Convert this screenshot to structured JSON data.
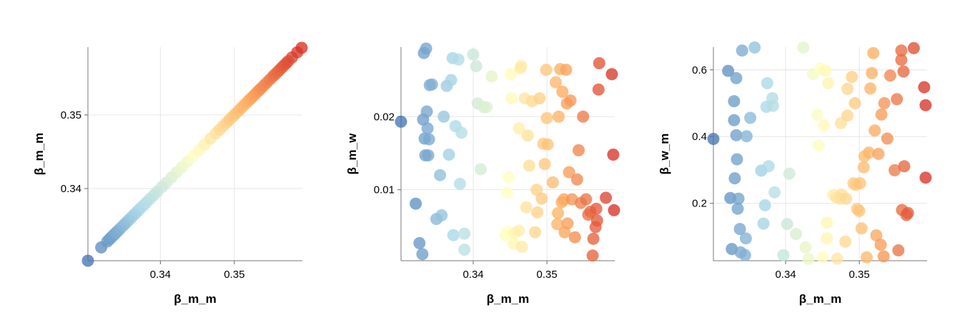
{
  "chart_data": [
    {
      "type": "scatter",
      "title": "",
      "xlabel": "β_m_m",
      "ylabel": "β_m_m",
      "xlim": [
        0.3302,
        0.3592
      ],
      "ylim": [
        0.3302,
        0.3592
      ],
      "xticks": [
        "0.34",
        "0.35"
      ],
      "yticks": [
        "0.34",
        "0.35"
      ],
      "grid": true,
      "color_by": "x",
      "colormap": "RdYlBu_r",
      "points": [
        [
          0.3302,
          0.3302
        ],
        [
          0.332,
          0.332
        ],
        [
          0.3328,
          0.3328
        ],
        [
          0.3331,
          0.3331
        ],
        [
          0.3333,
          0.3333
        ],
        [
          0.3335,
          0.3335
        ],
        [
          0.3337,
          0.3337
        ],
        [
          0.3339,
          0.3339
        ],
        [
          0.3341,
          0.3341
        ],
        [
          0.3343,
          0.3343
        ],
        [
          0.3346,
          0.3346
        ],
        [
          0.335,
          0.335
        ],
        [
          0.3353,
          0.3353
        ],
        [
          0.3357,
          0.3357
        ],
        [
          0.3361,
          0.3361
        ],
        [
          0.3365,
          0.3365
        ],
        [
          0.3369,
          0.3369
        ],
        [
          0.3373,
          0.3373
        ],
        [
          0.3377,
          0.3377
        ],
        [
          0.3381,
          0.3381
        ],
        [
          0.3386,
          0.3386
        ],
        [
          0.3391,
          0.3391
        ],
        [
          0.3396,
          0.3396
        ],
        [
          0.3402,
          0.3402
        ],
        [
          0.3408,
          0.3408
        ],
        [
          0.3415,
          0.3415
        ],
        [
          0.3422,
          0.3422
        ],
        [
          0.3429,
          0.3429
        ],
        [
          0.3436,
          0.3436
        ],
        [
          0.3444,
          0.3444
        ],
        [
          0.3452,
          0.3452
        ],
        [
          0.346,
          0.346
        ],
        [
          0.3468,
          0.3468
        ],
        [
          0.3475,
          0.3475
        ],
        [
          0.348,
          0.348
        ],
        [
          0.3485,
          0.3485
        ],
        [
          0.349,
          0.349
        ],
        [
          0.3494,
          0.3494
        ],
        [
          0.3498,
          0.3498
        ],
        [
          0.3502,
          0.3502
        ],
        [
          0.3506,
          0.3506
        ],
        [
          0.351,
          0.351
        ],
        [
          0.3514,
          0.3514
        ],
        [
          0.3518,
          0.3518
        ],
        [
          0.3521,
          0.3521
        ],
        [
          0.3524,
          0.3524
        ],
        [
          0.3527,
          0.3527
        ],
        [
          0.353,
          0.353
        ],
        [
          0.3533,
          0.3533
        ],
        [
          0.3536,
          0.3536
        ],
        [
          0.354,
          0.354
        ],
        [
          0.3544,
          0.3544
        ],
        [
          0.3548,
          0.3548
        ],
        [
          0.3552,
          0.3552
        ],
        [
          0.3555,
          0.3555
        ],
        [
          0.3558,
          0.3558
        ],
        [
          0.3561,
          0.3561
        ],
        [
          0.3564,
          0.3564
        ],
        [
          0.3567,
          0.3567
        ],
        [
          0.357,
          0.357
        ],
        [
          0.3573,
          0.3573
        ],
        [
          0.3578,
          0.3578
        ],
        [
          0.3585,
          0.3585
        ],
        [
          0.3591,
          0.3591
        ]
      ]
    },
    {
      "type": "scatter",
      "title": "",
      "xlabel": "β_m_m",
      "ylabel": "β_m_w",
      "xlim": [
        0.3302,
        0.3592
      ],
      "ylim": [
        0.0003,
        0.0295
      ],
      "xticks": [
        "0.34",
        "0.35"
      ],
      "yticks": [
        "0.01",
        "0.02"
      ],
      "grid": true,
      "color_by": "x",
      "colormap": "RdYlBu_r",
      "points": [
        [
          0.3302,
          0.0193
        ],
        [
          0.3322,
          0.0081
        ],
        [
          0.3327,
          0.0027
        ],
        [
          0.3331,
          0.0012
        ],
        [
          0.3332,
          0.0196
        ],
        [
          0.3333,
          0.0287
        ],
        [
          0.3334,
          0.017
        ],
        [
          0.3335,
          0.0147
        ],
        [
          0.3336,
          0.0293
        ],
        [
          0.3337,
          0.0207
        ],
        [
          0.3338,
          0.0184
        ],
        [
          0.3339,
          0.0147
        ],
        [
          0.334,
          0.0169
        ],
        [
          0.3341,
          0.0243
        ],
        [
          0.3344,
          0.0244
        ],
        [
          0.335,
          0.006
        ],
        [
          0.3355,
          0.012
        ],
        [
          0.3357,
          0.0065
        ],
        [
          0.336,
          0.02
        ],
        [
          0.3364,
          0.0242
        ],
        [
          0.3367,
          0.0148
        ],
        [
          0.337,
          0.025
        ],
        [
          0.3372,
          0.028
        ],
        [
          0.3373,
          0.0038
        ],
        [
          0.3376,
          0.0187
        ],
        [
          0.338,
          0.0278
        ],
        [
          0.3382,
          0.0108
        ],
        [
          0.3384,
          0.0178
        ],
        [
          0.3388,
          0.004
        ],
        [
          0.3388,
          0.0018
        ],
        [
          0.34,
          0.0285
        ],
        [
          0.3404,
          0.0269
        ],
        [
          0.3406,
          0.0218
        ],
        [
          0.341,
          0.0128
        ],
        [
          0.3414,
          0.0213
        ],
        [
          0.3418,
          0.0213
        ],
        [
          0.3425,
          0.0255
        ],
        [
          0.3444,
          0.0038
        ],
        [
          0.3446,
          0.0096
        ],
        [
          0.3447,
          0.0043
        ],
        [
          0.3448,
          0.0117
        ],
        [
          0.3451,
          0.0258
        ],
        [
          0.3452,
          0.0225
        ],
        [
          0.3455,
          0.0026
        ],
        [
          0.3456,
          0.0041
        ],
        [
          0.3462,
          0.0184
        ],
        [
          0.3462,
          0.0044
        ],
        [
          0.3464,
          0.0266
        ],
        [
          0.3465,
          0.0269
        ],
        [
          0.3466,
          0.0022
        ],
        [
          0.347,
          0.0225
        ],
        [
          0.3472,
          0.0076
        ],
        [
          0.3474,
          0.0174
        ],
        [
          0.3476,
          0.0133
        ],
        [
          0.348,
          0.0221
        ],
        [
          0.3484,
          0.0042
        ],
        [
          0.3486,
          0.01
        ],
        [
          0.3487,
          0.0069
        ],
        [
          0.349,
          0.0225
        ],
        [
          0.3493,
          0.0088
        ],
        [
          0.3495,
          0.0163
        ],
        [
          0.3497,
          0.0135
        ],
        [
          0.3499,
          0.0264
        ],
        [
          0.35,
          0.0198
        ],
        [
          0.3501,
          0.0162
        ],
        [
          0.3508,
          0.011
        ],
        [
          0.3512,
          0.0247
        ],
        [
          0.3514,
          0.0053
        ],
        [
          0.3515,
          0.0068
        ],
        [
          0.3516,
          0.02
        ],
        [
          0.3518,
          0.0265
        ],
        [
          0.352,
          0.0083
        ],
        [
          0.3521,
          0.0234
        ],
        [
          0.3523,
          0.0087
        ],
        [
          0.3524,
          0.0042
        ],
        [
          0.3526,
          0.0264
        ],
        [
          0.3527,
          0.0218
        ],
        [
          0.3528,
          0.0054
        ],
        [
          0.353,
          0.0124
        ],
        [
          0.3532,
          0.0222
        ],
        [
          0.3534,
          0.0087
        ],
        [
          0.3538,
          0.0035
        ],
        [
          0.3541,
          0.0114
        ],
        [
          0.3543,
          0.0154
        ],
        [
          0.3546,
          0.0082
        ],
        [
          0.3549,
          0.02
        ],
        [
          0.3553,
          0.0087
        ],
        [
          0.3556,
          0.0066
        ],
        [
          0.3559,
          0.007
        ],
        [
          0.3562,
          0.001
        ],
        [
          0.3563,
          0.0033
        ],
        [
          0.3566,
          0.0049
        ],
        [
          0.3567,
          0.0074
        ],
        [
          0.3568,
          0.0058
        ],
        [
          0.357,
          0.0237
        ],
        [
          0.3571,
          0.0273
        ],
        [
          0.358,
          0.0089
        ],
        [
          0.3588,
          0.0258
        ],
        [
          0.359,
          0.0148
        ],
        [
          0.3591,
          0.0072
        ]
      ]
    },
    {
      "type": "scatter",
      "title": "",
      "xlabel": "β_m_m",
      "ylabel": "β_w_m",
      "xlim": [
        0.3302,
        0.3592
      ],
      "ylim": [
        0.028,
        0.668
      ],
      "xticks": [
        "0.34",
        "0.35"
      ],
      "yticks": [
        "0.2",
        "0.4",
        "0.6"
      ],
      "grid": true,
      "color_by": "x",
      "colormap": "RdYlBu_r",
      "points": [
        [
          0.3302,
          0.393
        ],
        [
          0.3322,
          0.597
        ],
        [
          0.3325,
          0.216
        ],
        [
          0.3327,
          0.063
        ],
        [
          0.333,
          0.449
        ],
        [
          0.333,
          0.506
        ],
        [
          0.3331,
          0.275
        ],
        [
          0.3333,
          0.575
        ],
        [
          0.3333,
          0.404
        ],
        [
          0.3334,
          0.332
        ],
        [
          0.3335,
          0.184
        ],
        [
          0.3336,
          0.214
        ],
        [
          0.3338,
          0.123
        ],
        [
          0.3339,
          0.053
        ],
        [
          0.3341,
          0.658
        ],
        [
          0.3345,
          0.045
        ],
        [
          0.3346,
          0.095
        ],
        [
          0.3347,
          0.401
        ],
        [
          0.3352,
          0.456
        ],
        [
          0.3358,
          0.667
        ],
        [
          0.3367,
          0.298
        ],
        [
          0.337,
          0.139
        ],
        [
          0.3372,
          0.194
        ],
        [
          0.3374,
          0.489
        ],
        [
          0.3375,
          0.56
        ],
        [
          0.3377,
          0.311
        ],
        [
          0.3382,
          0.515
        ],
        [
          0.3383,
          0.492
        ],
        [
          0.3385,
          0.233
        ],
        [
          0.3397,
          0.045
        ],
        [
          0.3402,
          0.138
        ],
        [
          0.3405,
          0.289
        ],
        [
          0.3414,
          0.108
        ],
        [
          0.3424,
          0.667
        ],
        [
          0.3427,
          0.068
        ],
        [
          0.3431,
          0.033
        ],
        [
          0.3437,
          0.587
        ],
        [
          0.3443,
          0.465
        ],
        [
          0.3445,
          0.373
        ],
        [
          0.3447,
          0.604
        ],
        [
          0.345,
          0.039
        ],
        [
          0.3452,
          0.434
        ],
        [
          0.3454,
          0.597
        ],
        [
          0.3456,
          0.095
        ],
        [
          0.3456,
          0.142
        ],
        [
          0.3458,
          0.56
        ],
        [
          0.3465,
          0.225
        ],
        [
          0.3469,
          0.217
        ],
        [
          0.347,
          0.034
        ],
        [
          0.3474,
          0.214
        ],
        [
          0.3475,
          0.44
        ],
        [
          0.3476,
          0.226
        ],
        [
          0.3481,
          0.085
        ],
        [
          0.3482,
          0.214
        ],
        [
          0.3484,
          0.463
        ],
        [
          0.3484,
          0.543
        ],
        [
          0.349,
          0.579
        ],
        [
          0.3492,
          0.26
        ],
        [
          0.3494,
          0.5
        ],
        [
          0.3495,
          0.255
        ],
        [
          0.3497,
          0.183
        ],
        [
          0.35,
          0.177
        ],
        [
          0.3501,
          0.26
        ],
        [
          0.3503,
          0.125
        ],
        [
          0.3506,
          0.308
        ],
        [
          0.3507,
          0.341
        ],
        [
          0.351,
          0.038
        ],
        [
          0.3513,
          0.352
        ],
        [
          0.3515,
          0.544
        ],
        [
          0.3517,
          0.59
        ],
        [
          0.3519,
          0.65
        ],
        [
          0.3521,
          0.418
        ],
        [
          0.3523,
          0.104
        ],
        [
          0.3526,
          0.348
        ],
        [
          0.3529,
          0.076
        ],
        [
          0.353,
          0.466
        ],
        [
          0.3533,
          0.041
        ],
        [
          0.3534,
          0.5
        ],
        [
          0.3538,
          0.394
        ],
        [
          0.3542,
          0.583
        ],
        [
          0.3548,
          0.299
        ],
        [
          0.3551,
          0.512
        ],
        [
          0.3553,
          0.059
        ],
        [
          0.3557,
          0.63
        ],
        [
          0.3557,
          0.658
        ],
        [
          0.3558,
          0.18
        ],
        [
          0.356,
          0.595
        ],
        [
          0.3561,
          0.311
        ],
        [
          0.3564,
          0.165
        ],
        [
          0.3566,
          0.171
        ],
        [
          0.3574,
          0.665
        ],
        [
          0.3588,
          0.548
        ],
        [
          0.359,
          0.494
        ],
        [
          0.359,
          0.277
        ]
      ]
    }
  ]
}
